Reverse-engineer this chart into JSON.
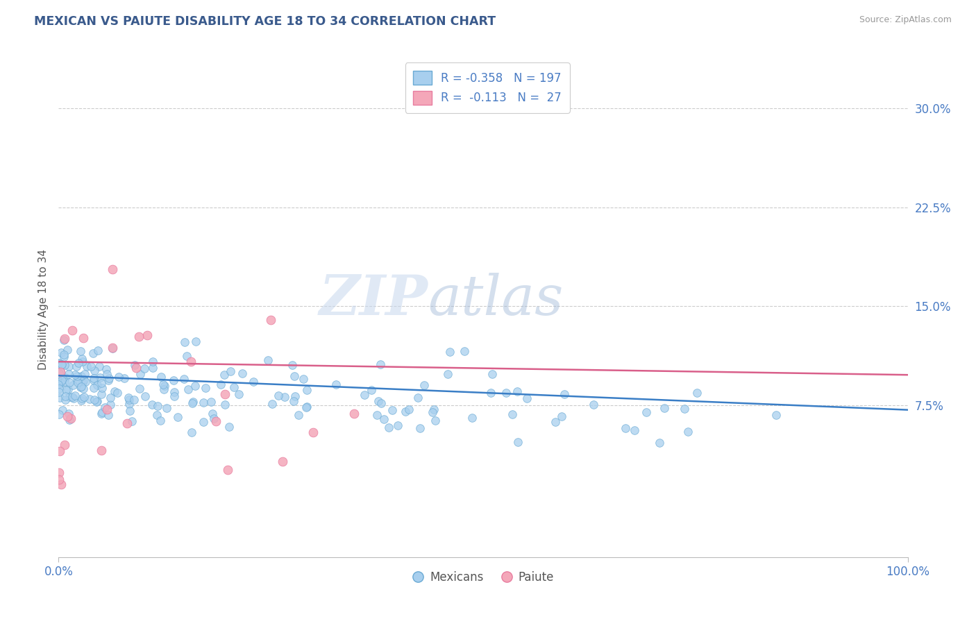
{
  "title": "MEXICAN VS PAIUTE DISABILITY AGE 18 TO 34 CORRELATION CHART",
  "source": "Source: ZipAtlas.com",
  "ylabel": "Disability Age 18 to 34",
  "watermark_zip": "ZIP",
  "watermark_atlas": "atlas",
  "legend_blue_label": "R = -0.358   N = 197",
  "legend_pink_label": "R =  -0.113   N =  27",
  "legend_bottom_blue": "Mexicans",
  "legend_bottom_pink": "Paiute",
  "blue_color": "#A8CFEE",
  "pink_color": "#F4A7B9",
  "blue_edge_color": "#6AAAD4",
  "pink_edge_color": "#E87DA0",
  "blue_line_color": "#3A7EC6",
  "pink_line_color": "#D95F8A",
  "title_color": "#3A5A8C",
  "source_color": "#999999",
  "axis_label_color": "#555555",
  "tick_label_color": "#4A7CC4",
  "background_color": "#FFFFFF",
  "grid_color": "#CCCCCC",
  "xlim": [
    0.0,
    1.0
  ],
  "ylim": [
    -0.04,
    0.335
  ],
  "yticks": [
    0.075,
    0.15,
    0.225,
    0.3
  ],
  "ytick_labels": [
    "7.5%",
    "15.0%",
    "22.5%",
    "30.0%"
  ],
  "xticks": [
    0.0,
    1.0
  ],
  "xtick_labels": [
    "0.0%",
    "100.0%"
  ],
  "blue_R": -0.358,
  "blue_N": 197,
  "pink_R": -0.113,
  "pink_N": 27,
  "blue_intercept": 0.0975,
  "blue_slope": -0.026,
  "pink_intercept": 0.108,
  "pink_slope": -0.01,
  "random_seed": 42
}
